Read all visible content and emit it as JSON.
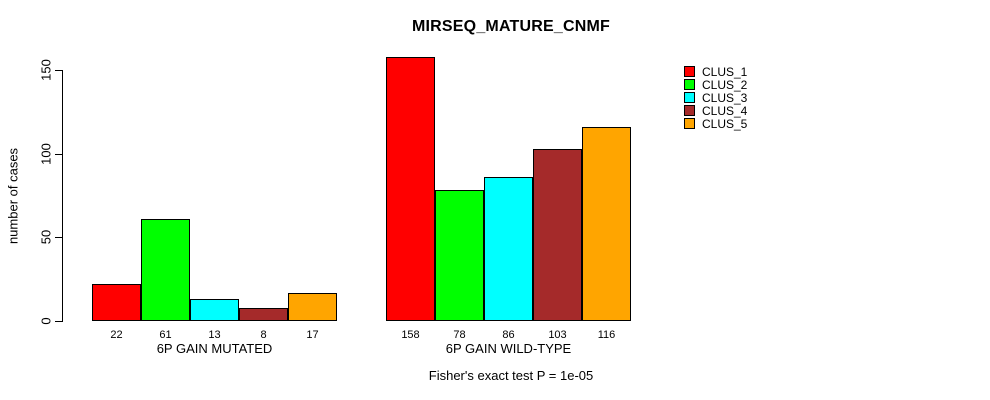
{
  "chart_data": {
    "type": "bar",
    "title": "MIRSEQ_MATURE_CNMF",
    "ylabel": "number of cases",
    "xlabel": "",
    "ylim": [
      0,
      150
    ],
    "yticks": [
      0,
      50,
      100,
      150
    ],
    "grid": false,
    "legend_position": "right",
    "annotation": "Fisher's exact test P = 1e-05",
    "series_names": [
      "CLUS_1",
      "CLUS_2",
      "CLUS_3",
      "CLUS_4",
      "CLUS_5"
    ],
    "series_colors": [
      "#ff0000",
      "#00ff00",
      "#00ffff",
      "#a52a2a",
      "#ffa500"
    ],
    "bar_border_color": "#000000",
    "groups": [
      {
        "label": "6P GAIN MUTATED",
        "values": [
          22,
          61,
          13,
          8,
          17
        ]
      },
      {
        "label": "6P GAIN WILD-TYPE",
        "values": [
          158,
          78,
          86,
          103,
          116
        ]
      }
    ]
  }
}
